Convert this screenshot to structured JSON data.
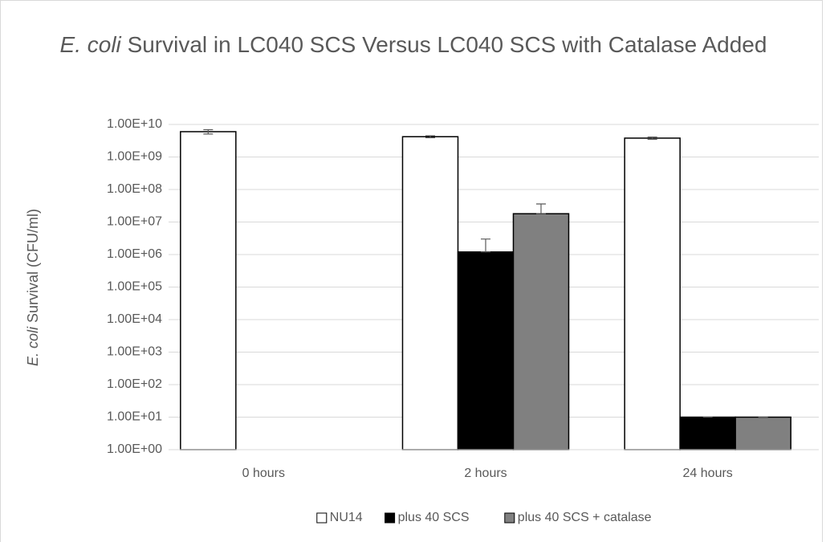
{
  "chart_data": {
    "type": "bar",
    "log_scale": true,
    "grid": true,
    "legend": "bottom",
    "title": {
      "italic": "E. coli",
      "text": "Survival in LC040 SCS Versus LC040 SCS with Catalase Added"
    },
    "ylabel": {
      "italic": "E. coli",
      "text": "Survival (CFU/ml)"
    },
    "categories": [
      "0 hours",
      "2 hours",
      "24 hours"
    ],
    "series": [
      {
        "name": "NU14",
        "color": "#ffffff",
        "values": [
          6000000000,
          4200000000,
          3800000000
        ],
        "errors": [
          900000000,
          300000000,
          300000000
        ]
      },
      {
        "name": "plus 40 SCS",
        "color": "#000000",
        "values": [
          null,
          1200000,
          10
        ],
        "errors": [
          null,
          1800000,
          0
        ]
      },
      {
        "name": "plus 40 SCS + catalase",
        "color": "#808080",
        "values": [
          null,
          18000000,
          10
        ],
        "errors": [
          null,
          18000000,
          0
        ]
      }
    ],
    "ylim": [
      1,
      10000000000
    ],
    "yticks": [
      {
        "value": 1,
        "label": "1.00E+00"
      },
      {
        "value": 10,
        "label": "1.00E+01"
      },
      {
        "value": 100,
        "label": "1.00E+02"
      },
      {
        "value": 1000,
        "label": "1.00E+03"
      },
      {
        "value": 10000,
        "label": "1.00E+04"
      },
      {
        "value": 100000,
        "label": "1.00E+05"
      },
      {
        "value": 1000000,
        "label": "1.00E+06"
      },
      {
        "value": 10000000,
        "label": "1.00E+07"
      },
      {
        "value": 100000000,
        "label": "1.00E+08"
      },
      {
        "value": 1000000000,
        "label": "1.00E+09"
      },
      {
        "value": 10000000000,
        "label": "1.00E+10"
      }
    ]
  }
}
